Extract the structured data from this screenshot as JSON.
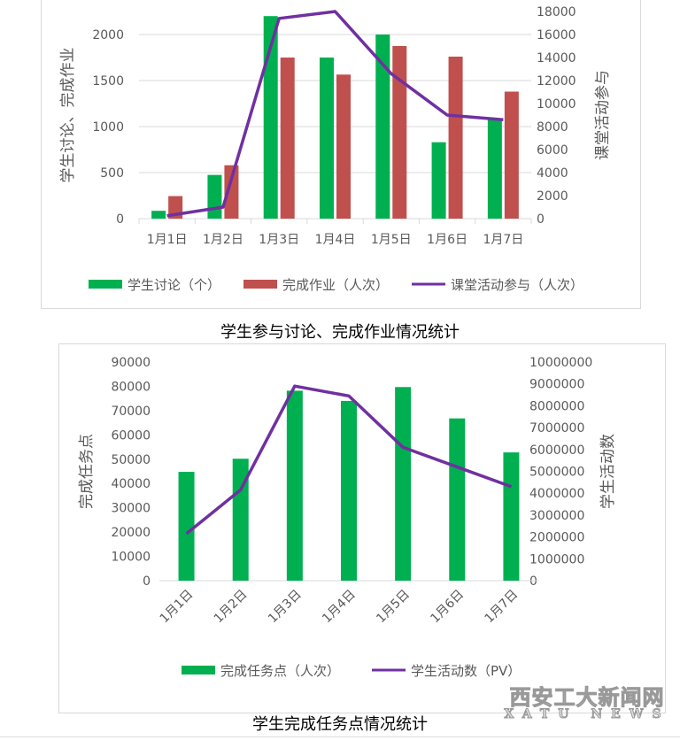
{
  "colors": {
    "green": "#00b050",
    "red": "#c0504d",
    "purple": "#7030a0",
    "grid": "#d9d9d9",
    "text": "#595959"
  },
  "chart_data": [
    {
      "type": "bar+line",
      "title": "学生参与讨论、完成作业情况统计",
      "categories": [
        "1月1日",
        "1月2日",
        "1月3日",
        "1月4日",
        "1月5日",
        "1月6日",
        "1月7日"
      ],
      "ylabel": "学生讨论、完成作业",
      "y2label": "课堂活动参与",
      "ylim": [
        0,
        2250
      ],
      "yticks": [
        0,
        500,
        1000,
        1500,
        2000
      ],
      "y2lim": [
        0,
        18000
      ],
      "y2ticks": [
        0,
        2000,
        4000,
        6000,
        8000,
        10000,
        12000,
        14000,
        16000,
        18000
      ],
      "grid": true,
      "legend": "bottom",
      "series": [
        {
          "name": "学生讨论（个）",
          "kind": "bar",
          "axis": "left",
          "values": [
            85,
            475,
            2200,
            1750,
            2000,
            830,
            1075
          ]
        },
        {
          "name": "完成作业（人次）",
          "kind": "bar",
          "axis": "left",
          "values": [
            245,
            580,
            1750,
            1565,
            1875,
            1760,
            1380
          ]
        },
        {
          "name": "课堂活动参与（人次）",
          "kind": "line",
          "axis": "right",
          "values": [
            250,
            1000,
            17400,
            18000,
            12600,
            9000,
            8600
          ]
        }
      ]
    },
    {
      "type": "bar+line",
      "title": "学生完成任务点情况统计",
      "categories": [
        "1月1日",
        "1月2日",
        "1月3日",
        "1月4日",
        "1月5日",
        "1月6日",
        "1月7日"
      ],
      "ylabel": "完成任务点",
      "y2label": "学生活动数",
      "ylim": [
        0,
        90000
      ],
      "yticks": [
        0,
        10000,
        20000,
        30000,
        40000,
        50000,
        60000,
        70000,
        80000,
        90000
      ],
      "y2lim": [
        0,
        10000000
      ],
      "y2ticks": [
        0,
        1000000,
        2000000,
        3000000,
        4000000,
        5000000,
        6000000,
        7000000,
        8000000,
        9000000,
        10000000
      ],
      "grid": false,
      "legend": "bottom",
      "series": [
        {
          "name": "完成任务点（人次）",
          "kind": "bar",
          "axis": "left",
          "values": [
            44800,
            50200,
            78200,
            74000,
            79700,
            66800,
            52800
          ]
        },
        {
          "name": "学生活动数（PV）",
          "kind": "line",
          "axis": "right",
          "values": [
            2150000,
            4150000,
            8900000,
            8450000,
            6100000,
            5200000,
            4300000
          ]
        }
      ]
    }
  ],
  "watermark": {
    "line1": "西安工大新闻网",
    "line2": "XATU NEWS"
  }
}
